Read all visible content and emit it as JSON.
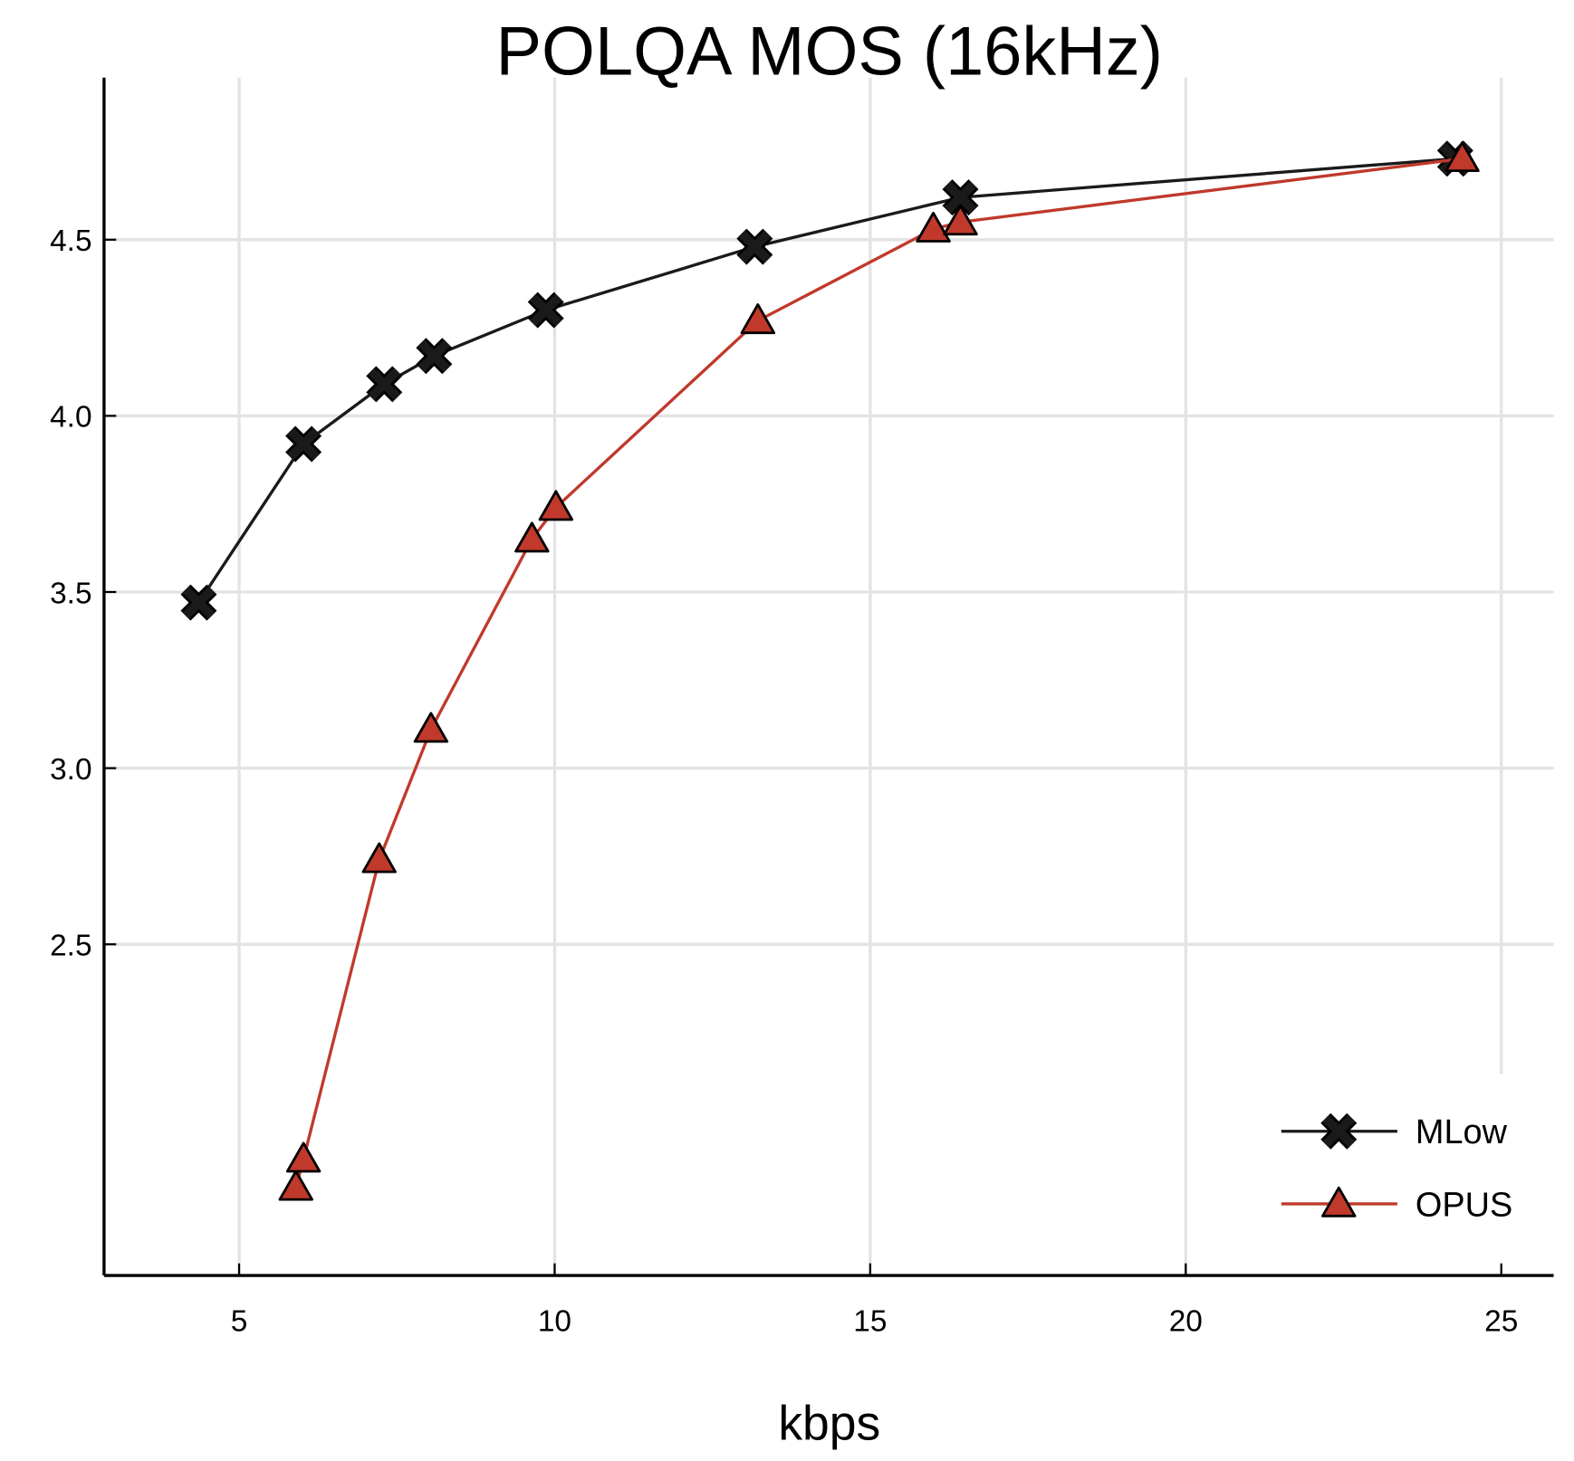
{
  "chart_data": {
    "type": "line",
    "title": "POLQA MOS (16kHz)",
    "xlabel": "kbps",
    "ylabel": "",
    "xlim": [
      2.86,
      25.83
    ],
    "ylim": [
      1.56,
      4.96
    ],
    "xticks": [
      5,
      10,
      15,
      20,
      25
    ],
    "xtick_labels": [
      "5",
      "10",
      "15",
      "20",
      "25"
    ],
    "yticks": [
      2.5,
      3.0,
      3.5,
      4.0,
      4.5
    ],
    "ytick_labels": [
      "2.5",
      "3.0",
      "3.5",
      "4.0",
      "4.5"
    ],
    "grid": true,
    "legend_position": "bottom-right",
    "series": [
      {
        "name": "MLow",
        "color": "#1a1a1a",
        "marker": "x-cross",
        "x": [
          4.36,
          6.02,
          7.3,
          8.09,
          9.86,
          13.17,
          16.43,
          24.27
        ],
        "y": [
          3.47,
          3.92,
          4.09,
          4.17,
          4.3,
          4.48,
          4.62,
          4.73
        ]
      },
      {
        "name": "OPUS",
        "color": "#c0392b",
        "marker": "triangle",
        "x": [
          5.9,
          6.02,
          7.22,
          8.04,
          9.64,
          10.02,
          13.22,
          16.0,
          16.43,
          24.38
        ],
        "y": [
          1.81,
          1.89,
          2.74,
          3.11,
          3.65,
          3.74,
          4.27,
          4.53,
          4.55,
          4.73
        ]
      }
    ]
  }
}
